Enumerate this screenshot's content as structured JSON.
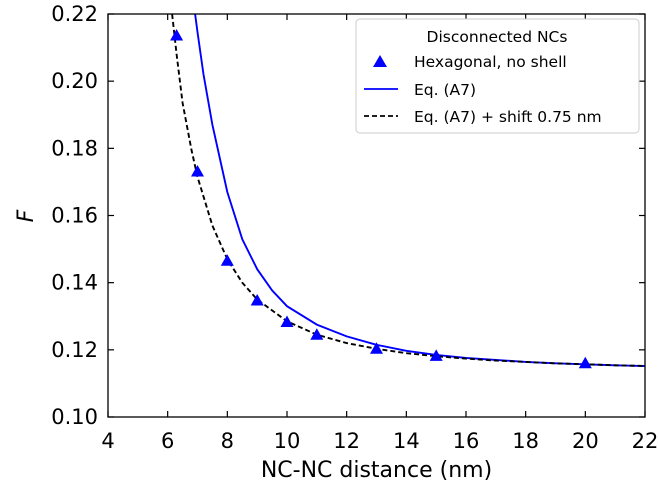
{
  "chart_data": {
    "type": "scatter",
    "title": "",
    "xlabel": "NC-NC distance (nm)",
    "ylabel": "F",
    "xlim": [
      4,
      22
    ],
    "ylim": [
      0.1,
      0.22
    ],
    "xticks": [
      "4",
      "6",
      "8",
      "10",
      "12",
      "14",
      "16",
      "18",
      "20",
      "22"
    ],
    "yticks": [
      "0.10",
      "0.12",
      "0.14",
      "0.16",
      "0.18",
      "0.20",
      "0.22"
    ],
    "grid": false,
    "legend_position": "top-right",
    "legend_title": "Disconnected NCs",
    "series": [
      {
        "name": "Hexagonal, no shell",
        "kind": "marker",
        "marker": "triangle",
        "color": "#0000ff",
        "x": [
          6.3,
          7.0,
          8.0,
          9.0,
          10.0,
          11.0,
          13.0,
          15.0,
          20.0
        ],
        "y": [
          0.2136,
          0.1731,
          0.1465,
          0.1347,
          0.1283,
          0.1245,
          0.1203,
          0.1182,
          0.116
        ]
      },
      {
        "name": "Eq. (A7)",
        "kind": "line",
        "style": "solid",
        "color": "#0000ff",
        "x": [
          6.92,
          7.0,
          7.2,
          7.5,
          8.0,
          8.5,
          9.0,
          9.5,
          10.0,
          11.0,
          12.0,
          13.0,
          14.0,
          15.0,
          16.0,
          17.0,
          18.0,
          19.0,
          20.0,
          21.0,
          22.0
        ],
        "y": [
          0.22,
          0.2146,
          0.202,
          0.187,
          0.167,
          0.1529,
          0.144,
          0.1377,
          0.133,
          0.1275,
          0.124,
          0.1215,
          0.1197,
          0.1185,
          0.1176,
          0.117,
          0.1164,
          0.116,
          0.1157,
          0.1154,
          0.1152
        ]
      },
      {
        "name": "Eq. (A7) + shift 0.75 nm",
        "kind": "line",
        "style": "dashed",
        "color": "#000000",
        "x": [
          6.15,
          6.3,
          6.5,
          6.8,
          7.0,
          7.5,
          8.0,
          8.5,
          9.0,
          10.0,
          11.0,
          12.0,
          13.0,
          14.0,
          15.0,
          16.0,
          17.0,
          18.0,
          19.0,
          20.0,
          21.0,
          22.0
        ],
        "y": [
          0.22,
          0.208,
          0.1935,
          0.1795,
          0.1715,
          0.157,
          0.147,
          0.14,
          0.135,
          0.1285,
          0.1245,
          0.122,
          0.1203,
          0.119,
          0.1181,
          0.1174,
          0.1168,
          0.1164,
          0.116,
          0.1157,
          0.1154,
          0.1152
        ]
      }
    ]
  }
}
